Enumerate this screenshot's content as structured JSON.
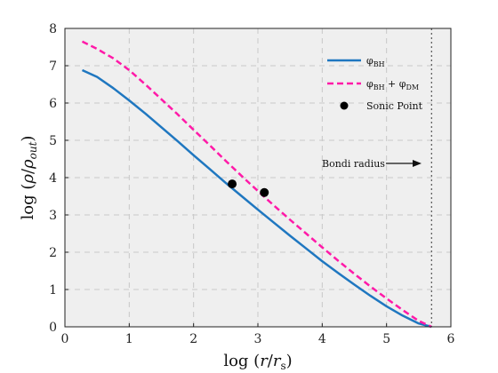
{
  "chart_data": {
    "type": "line",
    "xlabel": "log (r/r_s)",
    "ylabel": "log (ρ/ρ_out)",
    "xlim": [
      0,
      6
    ],
    "ylim": [
      0,
      8
    ],
    "xticks": [
      0,
      1,
      2,
      3,
      4,
      5,
      6
    ],
    "yticks": [
      0,
      1,
      2,
      3,
      4,
      5,
      6,
      7,
      8
    ],
    "grid": true,
    "legend_position": "top-right",
    "colors": {
      "bh": "#1f77c0",
      "bh_dm": "#ff1aa8",
      "points": "#000000",
      "background": "#efefef"
    },
    "series": [
      {
        "name": "φ_BH",
        "style": "solid",
        "x": [
          0.27,
          0.5,
          0.75,
          1.0,
          1.25,
          1.5,
          1.75,
          2.0,
          2.25,
          2.5,
          2.75,
          3.0,
          3.25,
          3.5,
          3.75,
          4.0,
          4.25,
          4.5,
          4.75,
          5.0,
          5.25,
          5.5,
          5.7
        ],
        "y": [
          6.88,
          6.7,
          6.4,
          6.07,
          5.72,
          5.35,
          4.98,
          4.6,
          4.23,
          3.86,
          3.5,
          3.14,
          2.79,
          2.44,
          2.1,
          1.76,
          1.44,
          1.13,
          0.83,
          0.55,
          0.3,
          0.09,
          0.0
        ]
      },
      {
        "name": "φ_BH + φ_DM",
        "style": "dashed",
        "x": [
          0.27,
          0.5,
          0.75,
          1.0,
          1.25,
          1.5,
          1.75,
          2.0,
          2.25,
          2.5,
          2.75,
          3.0,
          3.25,
          3.5,
          3.75,
          4.0,
          4.25,
          4.5,
          4.75,
          5.0,
          5.25,
          5.5,
          5.7
        ],
        "y": [
          7.65,
          7.45,
          7.2,
          6.88,
          6.5,
          6.1,
          5.7,
          5.28,
          4.87,
          4.45,
          4.04,
          3.64,
          3.25,
          2.87,
          2.5,
          2.13,
          1.77,
          1.42,
          1.08,
          0.76,
          0.45,
          0.16,
          0.0
        ]
      }
    ],
    "points": {
      "name": "Sonic Point",
      "x": [
        2.6,
        3.1
      ],
      "y": [
        3.83,
        3.6
      ]
    },
    "vline": {
      "x": 5.7
    },
    "annotation": {
      "text": "Bondi radius"
    }
  }
}
